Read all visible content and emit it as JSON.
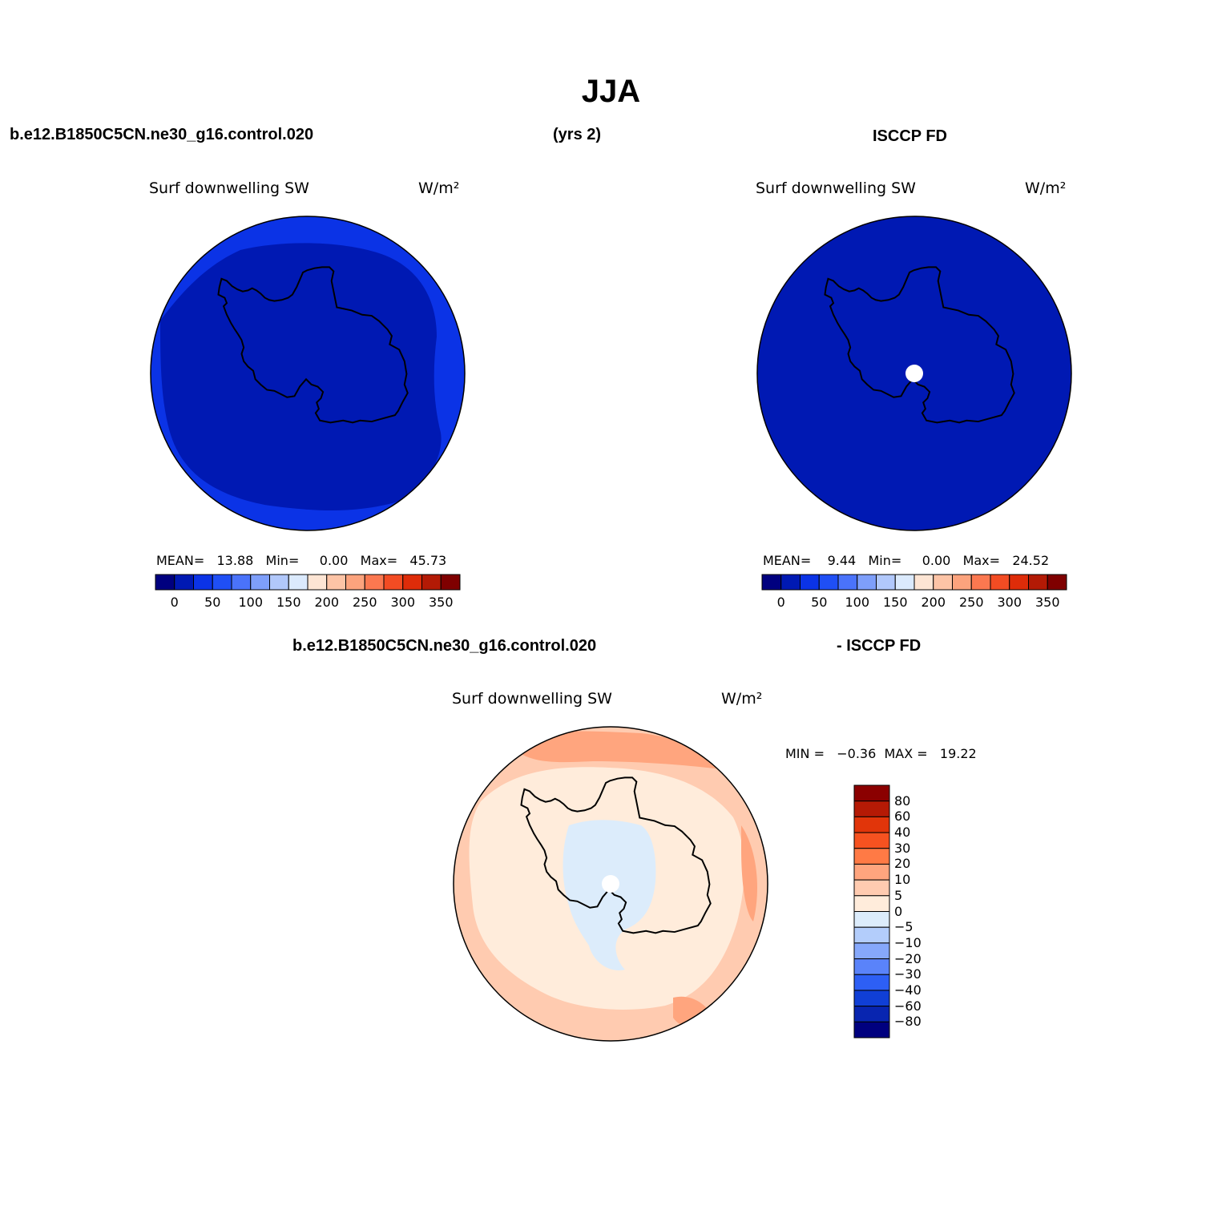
{
  "title": "JJA",
  "top_left_header": "b.e12.B1850C5CN.ne30_g16.control.020",
  "top_center_header": "(yrs 2)",
  "top_right_header": "ISCCP FD",
  "bottom_left_header": "b.e12.B1850C5CN.ne30_g16.control.020",
  "bottom_right_header": "- ISCCP FD",
  "panels": [
    {
      "variable": "Surf downwelling SW",
      "units": "W/m²",
      "stats": "MEAN=   13.88   Min=     0.00   Max=   45.73"
    },
    {
      "variable": "Surf downwelling SW",
      "units": "W/m²",
      "stats": "MEAN=    9.44   Min=     0.00   Max=   24.52"
    },
    {
      "variable": "Surf downwelling SW",
      "units": "W/m²",
      "stats": "MIN =   −0.36  MAX =   19.22"
    }
  ],
  "colorbar_top": {
    "colors": [
      "#00007f",
      "#0019b3",
      "#0b33e6",
      "#1f4ff5",
      "#4a73fa",
      "#7e9ffa",
      "#b1c8fb",
      "#dbeafd",
      "#fde5d4",
      "#fdc4a6",
      "#fca37d",
      "#fb7850",
      "#f34c23",
      "#de2c09",
      "#b31a05",
      "#7f0000"
    ],
    "labels": [
      "0",
      "50",
      "100",
      "150",
      "200",
      "250",
      "300",
      "350"
    ]
  },
  "colorbar_diff": {
    "colors": [
      "#8b0000",
      "#b51a05",
      "#e1350a",
      "#f65220",
      "#ff7a45",
      "#ffa57e",
      "#ffcbb0",
      "#ffecdb",
      "#dcecfb",
      "#b3cdfb",
      "#86a8fb",
      "#5a83fa",
      "#2d5ff5",
      "#103fd6",
      "#0825b0",
      "#00007f"
    ],
    "labels": [
      "80",
      "60",
      "40",
      "30",
      "20",
      "10",
      "5",
      "0",
      "−5",
      "−10",
      "−20",
      "−30",
      "−40",
      "−60",
      "−80"
    ]
  },
  "map_colors": {
    "deep_blue": "#0019b3",
    "mid_blue": "#0b33e6",
    "pale_peach": "#ffecdb",
    "light_salmon": "#ffcbb0",
    "salmon": "#ffa57e",
    "pale_blue": "#dcecfb"
  }
}
